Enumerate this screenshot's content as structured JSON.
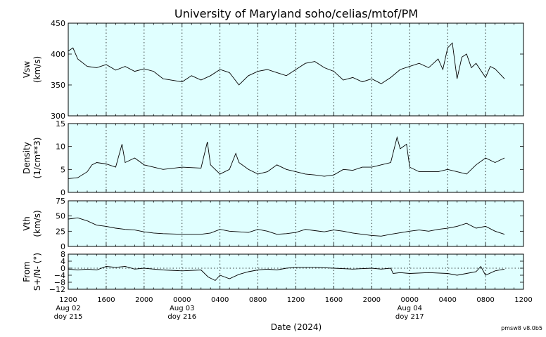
{
  "chart_data": {
    "type": "line",
    "title": "University of Maryland  soho/celias/mtof/PM",
    "xlabel": "Date (2024)",
    "x_range": [
      "2024-08-02T12:00",
      "2024-08-04T12:00"
    ],
    "x_ticks": [
      {
        "time": "2024-08-02T12:00",
        "label": "1200",
        "date": "Aug 02",
        "doy": "doy 215"
      },
      {
        "time": "2024-08-02T16:00",
        "label": "1600"
      },
      {
        "time": "2024-08-02T20:00",
        "label": "2000"
      },
      {
        "time": "2024-08-03T00:00",
        "label": "0000",
        "date": "Aug 03",
        "doy": "doy 216"
      },
      {
        "time": "2024-08-03T04:00",
        "label": "0400"
      },
      {
        "time": "2024-08-03T08:00",
        "label": "0800"
      },
      {
        "time": "2024-08-03T12:00",
        "label": "1200"
      },
      {
        "time": "2024-08-03T16:00",
        "label": "1600"
      },
      {
        "time": "2024-08-03T20:00",
        "label": "2000"
      },
      {
        "time": "2024-08-04T00:00",
        "label": "0000",
        "date": "Aug 04",
        "doy": "doy 217"
      },
      {
        "time": "2024-08-04T04:00",
        "label": "0400"
      },
      {
        "time": "2024-08-04T08:00",
        "label": "0800"
      },
      {
        "time": "2024-08-04T12:00",
        "label": "1200"
      }
    ],
    "grid": "vertical dotted",
    "background_color": "#e0ffff",
    "line_color": "#000000",
    "version_label": "pmsw8 v8.0b5",
    "panels": [
      {
        "name": "vsw",
        "ylabel": [
          "Vsw",
          "(km/s)"
        ],
        "ylim": [
          300,
          450
        ],
        "yticks": [
          300,
          350,
          400,
          450
        ],
        "series": [
          {
            "points": [
              [
                "2024-08-02T12:00",
                405
              ],
              [
                "2024-08-02T12:30",
                410
              ],
              [
                "2024-08-02T13:00",
                392
              ],
              [
                "2024-08-02T14:00",
                380
              ],
              [
                "2024-08-02T15:00",
                378
              ],
              [
                "2024-08-02T16:00",
                383
              ],
              [
                "2024-08-02T17:00",
                374
              ],
              [
                "2024-08-02T18:00",
                380
              ],
              [
                "2024-08-02T19:00",
                372
              ],
              [
                "2024-08-02T20:00",
                376
              ],
              [
                "2024-08-02T21:00",
                372
              ],
              [
                "2024-08-02T22:00",
                360
              ],
              [
                "2024-08-03T00:00",
                355
              ],
              [
                "2024-08-03T01:00",
                365
              ],
              [
                "2024-08-03T02:00",
                358
              ],
              [
                "2024-08-03T03:00",
                365
              ],
              [
                "2024-08-03T04:00",
                375
              ],
              [
                "2024-08-03T05:00",
                370
              ],
              [
                "2024-08-03T06:00",
                350
              ],
              [
                "2024-08-03T07:00",
                365
              ],
              [
                "2024-08-03T08:00",
                372
              ],
              [
                "2024-08-03T09:00",
                375
              ],
              [
                "2024-08-03T10:00",
                370
              ],
              [
                "2024-08-03T11:00",
                365
              ],
              [
                "2024-08-03T12:00",
                375
              ],
              [
                "2024-08-03T13:00",
                385
              ],
              [
                "2024-08-03T14:00",
                388
              ],
              [
                "2024-08-03T15:00",
                378
              ],
              [
                "2024-08-03T16:00",
                372
              ],
              [
                "2024-08-03T17:00",
                358
              ],
              [
                "2024-08-03T18:00",
                362
              ],
              [
                "2024-08-03T19:00",
                355
              ],
              [
                "2024-08-03T20:00",
                360
              ],
              [
                "2024-08-03T21:00",
                352
              ],
              [
                "2024-08-03T22:00",
                362
              ],
              [
                "2024-08-03T23:00",
                375
              ],
              [
                "2024-08-04T00:00",
                380
              ],
              [
                "2024-08-04T01:00",
                385
              ],
              [
                "2024-08-04T02:00",
                378
              ],
              [
                "2024-08-04T03:00",
                392
              ],
              [
                "2024-08-04T03:30",
                375
              ],
              [
                "2024-08-04T04:00",
                410
              ],
              [
                "2024-08-04T04:30",
                418
              ],
              [
                "2024-08-04T05:00",
                360
              ],
              [
                "2024-08-04T05:30",
                395
              ],
              [
                "2024-08-04T06:00",
                400
              ],
              [
                "2024-08-04T06:30",
                378
              ],
              [
                "2024-08-04T07:00",
                385
              ],
              [
                "2024-08-04T08:00",
                362
              ],
              [
                "2024-08-04T08:30",
                380
              ],
              [
                "2024-08-04T09:00",
                376
              ],
              [
                "2024-08-04T10:00",
                360
              ]
            ]
          }
        ]
      },
      {
        "name": "density",
        "ylabel": [
          "Density",
          "(1/cm**3)"
        ],
        "ylim": [
          0,
          15
        ],
        "yticks": [
          0,
          5,
          10,
          15
        ],
        "series": [
          {
            "points": [
              [
                "2024-08-02T12:00",
                3.0
              ],
              [
                "2024-08-02T13:00",
                3.2
              ],
              [
                "2024-08-02T14:00",
                4.5
              ],
              [
                "2024-08-02T14:30",
                6.0
              ],
              [
                "2024-08-02T15:00",
                6.5
              ],
              [
                "2024-08-02T16:00",
                6.2
              ],
              [
                "2024-08-02T17:00",
                5.5
              ],
              [
                "2024-08-02T17:40",
                10.5
              ],
              [
                "2024-08-02T18:00",
                6.5
              ],
              [
                "2024-08-02T19:00",
                7.5
              ],
              [
                "2024-08-02T20:00",
                6.0
              ],
              [
                "2024-08-02T21:00",
                5.5
              ],
              [
                "2024-08-02T22:00",
                5.0
              ],
              [
                "2024-08-03T00:00",
                5.5
              ],
              [
                "2024-08-03T02:00",
                5.3
              ],
              [
                "2024-08-03T02:40",
                11.0
              ],
              [
                "2024-08-03T03:00",
                6.0
              ],
              [
                "2024-08-03T04:00",
                4.0
              ],
              [
                "2024-08-03T05:00",
                5.0
              ],
              [
                "2024-08-03T05:40",
                8.5
              ],
              [
                "2024-08-03T06:00",
                6.5
              ],
              [
                "2024-08-03T07:00",
                5.0
              ],
              [
                "2024-08-03T08:00",
                4.0
              ],
              [
                "2024-08-03T09:00",
                4.5
              ],
              [
                "2024-08-03T10:00",
                6.0
              ],
              [
                "2024-08-03T11:00",
                5.0
              ],
              [
                "2024-08-03T12:00",
                4.5
              ],
              [
                "2024-08-03T13:00",
                4.0
              ],
              [
                "2024-08-03T14:00",
                3.8
              ],
              [
                "2024-08-03T15:00",
                3.5
              ],
              [
                "2024-08-03T16:00",
                3.8
              ],
              [
                "2024-08-03T17:00",
                5.0
              ],
              [
                "2024-08-03T18:00",
                4.8
              ],
              [
                "2024-08-03T19:00",
                5.5
              ],
              [
                "2024-08-03T20:00",
                5.5
              ],
              [
                "2024-08-03T21:00",
                6.0
              ],
              [
                "2024-08-03T22:00",
                6.5
              ],
              [
                "2024-08-03T22:40",
                12.0
              ],
              [
                "2024-08-03T23:00",
                9.5
              ],
              [
                "2024-08-03T23:40",
                10.5
              ],
              [
                "2024-08-04T00:00",
                5.5
              ],
              [
                "2024-08-04T01:00",
                4.5
              ],
              [
                "2024-08-04T02:00",
                4.5
              ],
              [
                "2024-08-04T03:00",
                4.5
              ],
              [
                "2024-08-04T04:00",
                5.0
              ],
              [
                "2024-08-04T05:00",
                4.5
              ],
              [
                "2024-08-04T06:00",
                4.0
              ],
              [
                "2024-08-04T07:00",
                6.0
              ],
              [
                "2024-08-04T08:00",
                7.5
              ],
              [
                "2024-08-04T09:00",
                6.5
              ],
              [
                "2024-08-04T10:00",
                7.5
              ]
            ]
          }
        ]
      },
      {
        "name": "vth",
        "ylabel": [
          "Vth",
          "(km/s)"
        ],
        "ylim": [
          0,
          75
        ],
        "yticks": [
          0,
          25,
          50,
          75
        ],
        "series": [
          {
            "points": [
              [
                "2024-08-02T12:00",
                45
              ],
              [
                "2024-08-02T13:00",
                47
              ],
              [
                "2024-08-02T14:00",
                42
              ],
              [
                "2024-08-02T15:00",
                35
              ],
              [
                "2024-08-02T16:00",
                33
              ],
              [
                "2024-08-02T17:00",
                30
              ],
              [
                "2024-08-02T18:00",
                28
              ],
              [
                "2024-08-02T19:00",
                27
              ],
              [
                "2024-08-02T20:00",
                24
              ],
              [
                "2024-08-02T21:00",
                22
              ],
              [
                "2024-08-02T22:00",
                21
              ],
              [
                "2024-08-03T00:00",
                20
              ],
              [
                "2024-08-03T02:00",
                20
              ],
              [
                "2024-08-03T03:00",
                22
              ],
              [
                "2024-08-03T04:00",
                28
              ],
              [
                "2024-08-03T05:00",
                25
              ],
              [
                "2024-08-03T06:00",
                24
              ],
              [
                "2024-08-03T07:00",
                23
              ],
              [
                "2024-08-03T08:00",
                28
              ],
              [
                "2024-08-03T09:00",
                25
              ],
              [
                "2024-08-03T10:00",
                20
              ],
              [
                "2024-08-03T11:00",
                21
              ],
              [
                "2024-08-03T12:00",
                23
              ],
              [
                "2024-08-03T13:00",
                28
              ],
              [
                "2024-08-03T14:00",
                26
              ],
              [
                "2024-08-03T15:00",
                24
              ],
              [
                "2024-08-03T16:00",
                27
              ],
              [
                "2024-08-03T17:00",
                25
              ],
              [
                "2024-08-03T18:00",
                22
              ],
              [
                "2024-08-03T19:00",
                20
              ],
              [
                "2024-08-03T20:00",
                18
              ],
              [
                "2024-08-03T21:00",
                17
              ],
              [
                "2024-08-03T22:00",
                20
              ],
              [
                "2024-08-04T00:00",
                25
              ],
              [
                "2024-08-04T01:00",
                27
              ],
              [
                "2024-08-04T02:00",
                25
              ],
              [
                "2024-08-04T03:00",
                28
              ],
              [
                "2024-08-04T04:00",
                30
              ],
              [
                "2024-08-04T05:00",
                33
              ],
              [
                "2024-08-04T06:00",
                38
              ],
              [
                "2024-08-04T07:00",
                30
              ],
              [
                "2024-08-04T08:00",
                33
              ],
              [
                "2024-08-04T09:00",
                25
              ],
              [
                "2024-08-04T10:00",
                20
              ]
            ]
          }
        ]
      },
      {
        "name": "flow-angle",
        "ylabel": [
          "From",
          "S+/N- (°)"
        ],
        "ylim": [
          -12,
          8
        ],
        "yticks": [
          -12,
          -8,
          -4,
          0,
          4,
          8
        ],
        "ytick_labels": [
          "−12",
          "−8",
          "−4",
          "0",
          "4",
          "8"
        ],
        "zero_line": true,
        "series": [
          {
            "points": [
              [
                "2024-08-02T12:00",
                -0.5
              ],
              [
                "2024-08-02T13:00",
                -1.0
              ],
              [
                "2024-08-02T14:00",
                -0.5
              ],
              [
                "2024-08-02T15:00",
                -1.0
              ],
              [
                "2024-08-02T16:00",
                1.0
              ],
              [
                "2024-08-02T17:00",
                0.5
              ],
              [
                "2024-08-02T18:00",
                1.0
              ],
              [
                "2024-08-02T19:00",
                -0.5
              ],
              [
                "2024-08-02T20:00",
                0.0
              ],
              [
                "2024-08-02T21:00",
                -0.5
              ],
              [
                "2024-08-02T22:00",
                -1.0
              ],
              [
                "2024-08-03T00:00",
                -1.5
              ],
              [
                "2024-08-03T02:00",
                -1.0
              ],
              [
                "2024-08-03T02:45",
                -5.0
              ],
              [
                "2024-08-03T03:30",
                -7.0
              ],
              [
                "2024-08-03T04:00",
                -4.0
              ],
              [
                "2024-08-03T05:00",
                -6.0
              ],
              [
                "2024-08-03T06:00",
                -3.5
              ],
              [
                "2024-08-03T07:00",
                -2.0
              ],
              [
                "2024-08-03T08:00",
                -1.0
              ],
              [
                "2024-08-03T09:00",
                -0.5
              ],
              [
                "2024-08-03T10:00",
                -1.0
              ],
              [
                "2024-08-03T11:00",
                0.0
              ],
              [
                "2024-08-03T12:00",
                0.5
              ],
              [
                "2024-08-03T14:00",
                0.5
              ],
              [
                "2024-08-03T16:00",
                0.0
              ],
              [
                "2024-08-03T18:00",
                -0.5
              ],
              [
                "2024-08-03T20:00",
                0.0
              ],
              [
                "2024-08-03T21:00",
                -0.5
              ],
              [
                "2024-08-03T22:00",
                0.0
              ],
              [
                "2024-08-03T22:15",
                -3.0
              ],
              [
                "2024-08-03T23:00",
                -2.5
              ],
              [
                "2024-08-04T00:00",
                -3.0
              ],
              [
                "2024-08-04T02:00",
                -2.5
              ],
              [
                "2024-08-04T04:00",
                -3.0
              ],
              [
                "2024-08-04T05:00",
                -4.0
              ],
              [
                "2024-08-04T06:00",
                -3.0
              ],
              [
                "2024-08-04T07:00",
                -2.0
              ],
              [
                "2024-08-04T07:30",
                1.0
              ],
              [
                "2024-08-04T08:00",
                -4.0
              ],
              [
                "2024-08-04T09:00",
                -1.5
              ],
              [
                "2024-08-04T10:00",
                -0.5
              ]
            ]
          }
        ]
      }
    ]
  }
}
